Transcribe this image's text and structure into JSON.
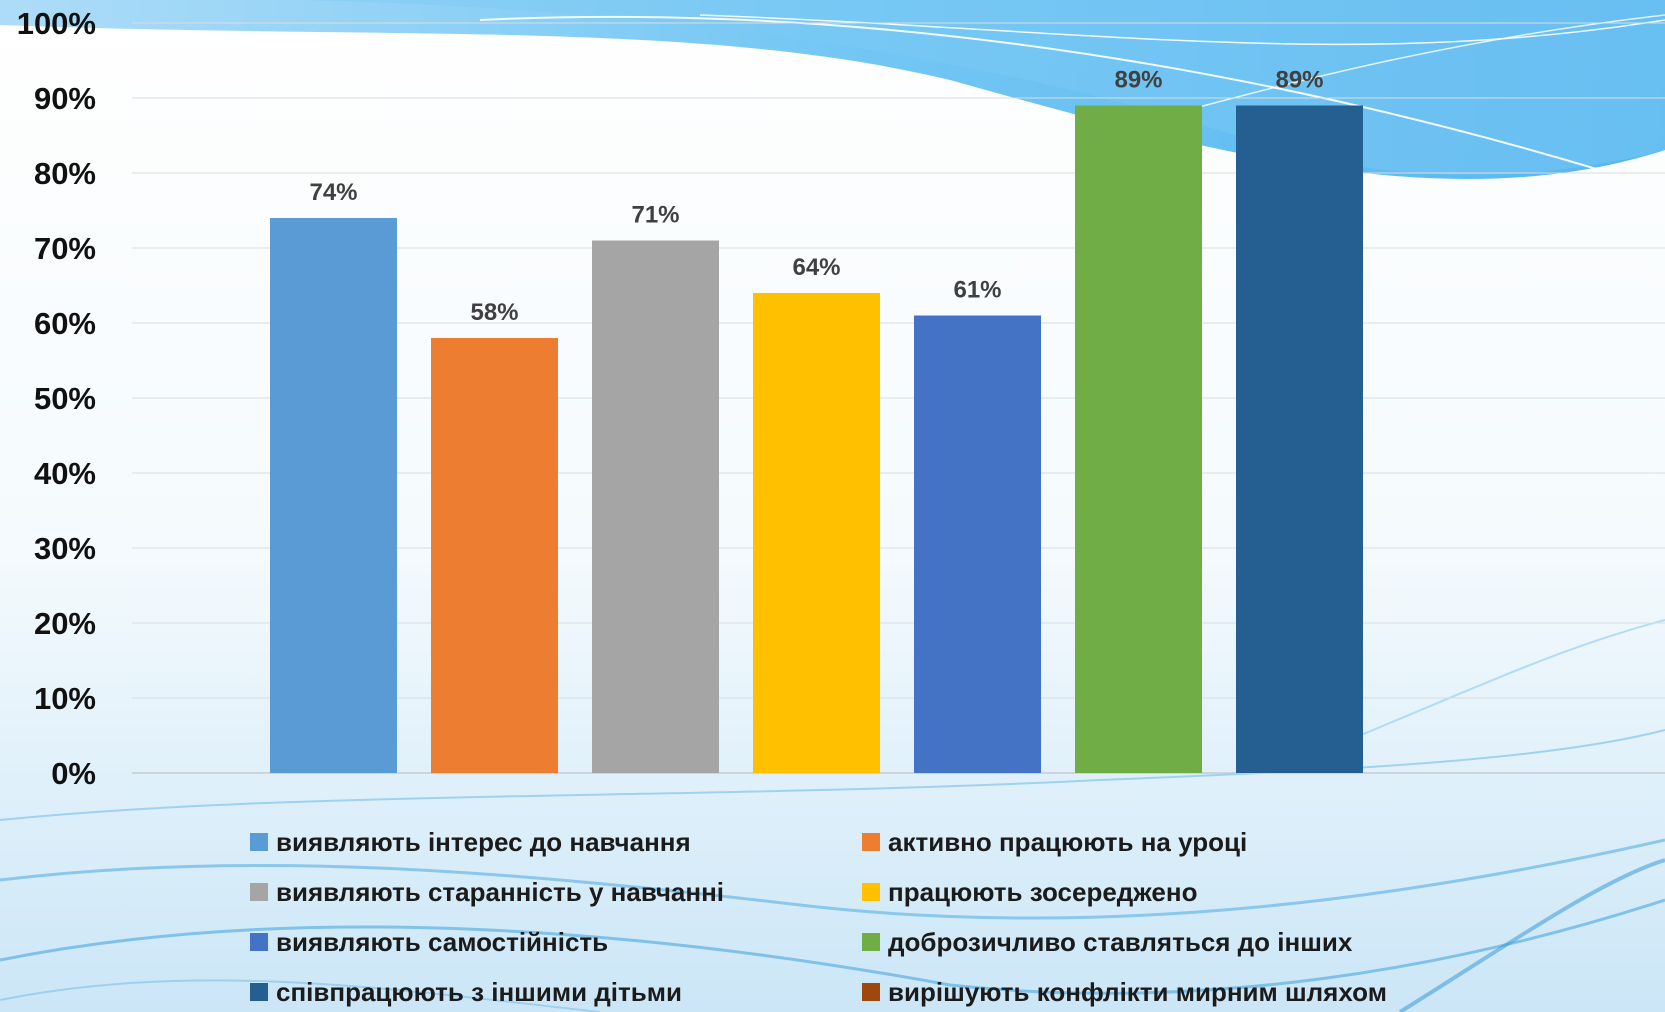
{
  "chart_data": {
    "type": "bar",
    "ylim": [
      0,
      100
    ],
    "yticks": [
      "0%",
      "10%",
      "20%",
      "30%",
      "40%",
      "50%",
      "60%",
      "70%",
      "80%",
      "90%",
      "100%"
    ],
    "grid": true,
    "legend_position": "bottom",
    "series": [
      {
        "name": "виявляють інтерес до навчання",
        "value": 74,
        "label": "74%",
        "color": "#5b9bd5"
      },
      {
        "name": "активно працюють на уроці",
        "value": 58,
        "label": "58%",
        "color": "#ed7d31"
      },
      {
        "name": "виявляють старанність у навчанні",
        "value": 71,
        "label": "71%",
        "color": "#a5a5a5"
      },
      {
        "name": "працюють зосереджено",
        "value": 64,
        "label": "64%",
        "color": "#ffc000"
      },
      {
        "name": "виявляють самостійність",
        "value": 61,
        "label": "61%",
        "color": "#4472c4"
      },
      {
        "name": "доброзичливо ставляться до інших",
        "value": 89,
        "label": "89%",
        "color": "#70ad47"
      },
      {
        "name": "співпрацюють з іншими дітьми",
        "value": 89,
        "label": "89%",
        "color": "#255e91"
      },
      {
        "name": "вирішують конфлікти мирним шляхом",
        "value": null,
        "label": "",
        "color": "#9e480e"
      }
    ]
  }
}
